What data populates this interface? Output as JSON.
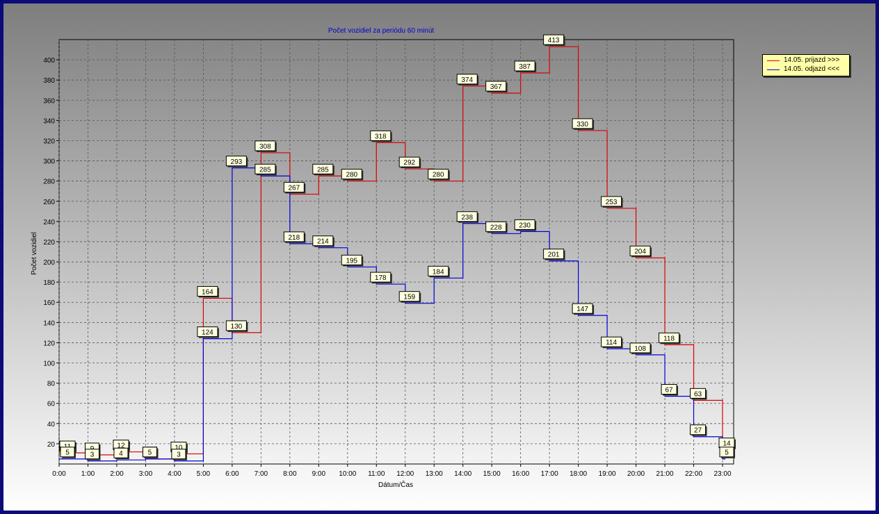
{
  "chart_data": {
    "type": "line",
    "step": true,
    "title": "Počet vozidiel za periódu 60 minút",
    "xlabel": "Dátum/Čas",
    "ylabel": "Počet vozidiel",
    "categories": [
      "0:00",
      "1:00",
      "2:00",
      "3:00",
      "4:00",
      "5:00",
      "6:00",
      "7:00",
      "8:00",
      "9:00",
      "10:00",
      "11:00",
      "12:00",
      "13:00",
      "14:00",
      "15:00",
      "16:00",
      "17:00",
      "18:00",
      "19:00",
      "20:00",
      "21:00",
      "22:00",
      "23:00"
    ],
    "yticks": [
      20,
      40,
      60,
      80,
      100,
      120,
      140,
      160,
      180,
      200,
      220,
      240,
      260,
      280,
      300,
      320,
      340,
      360,
      380,
      400
    ],
    "ylim": [
      0,
      420
    ],
    "grid": true,
    "legend_position": "right",
    "series": [
      {
        "name": "14.05. prijazd >>>",
        "color": "#dd0000",
        "values": [
          11,
          9,
          12,
          5,
          10,
          164,
          130,
          308,
          267,
          285,
          280,
          318,
          292,
          280,
          374,
          367,
          387,
          413,
          330,
          253,
          204,
          118,
          63,
          14
        ],
        "labels": [
          "11",
          "9",
          "12",
          "5",
          "10",
          "164",
          "130",
          "308",
          "267",
          "285",
          "280",
          "318",
          "292",
          "280",
          "374",
          "367",
          "387",
          "413",
          "330",
          "253",
          "204",
          "118",
          "63",
          "14"
        ]
      },
      {
        "name": "14.05. odjazd <<<",
        "color": "#0000dd",
        "values": [
          5,
          3,
          4,
          5,
          3,
          124,
          293,
          285,
          218,
          214,
          195,
          178,
          159,
          184,
          238,
          228,
          230,
          201,
          147,
          114,
          108,
          67,
          27,
          5
        ],
        "labels": [
          "5",
          "3",
          "4",
          "5",
          "3",
          "124",
          "293",
          "285",
          "218",
          "214",
          "195",
          "178",
          "159",
          "184",
          "238",
          "228",
          "230",
          "201",
          "147",
          "114",
          "108",
          "67",
          "27",
          "5"
        ]
      }
    ]
  },
  "colors": {
    "frame": "#0b0b7a",
    "title": "#0000cc",
    "label_fill": "#ffffe0"
  }
}
